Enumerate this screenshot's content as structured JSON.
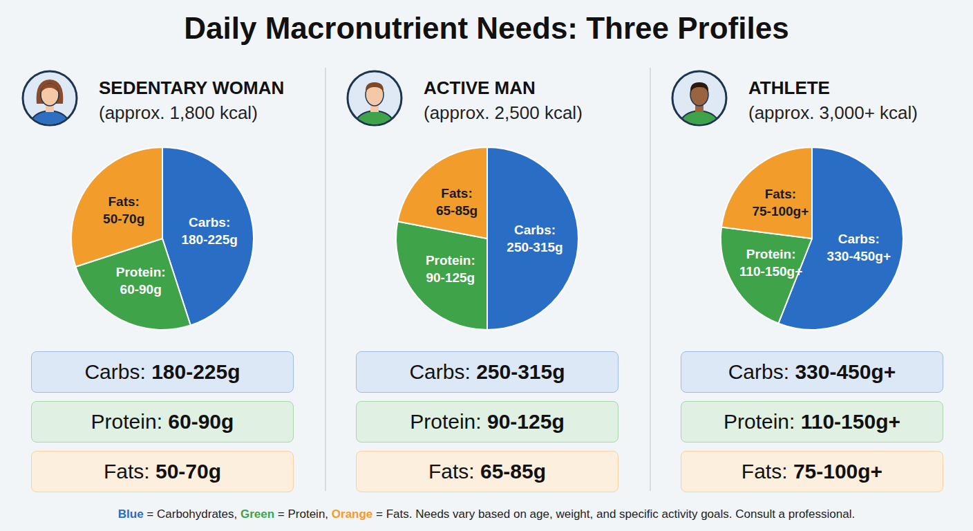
{
  "title": "Daily Macronutrient Needs: Three Profiles",
  "footnote": [
    {
      "text": "Blue",
      "color": "#2a6dc4"
    },
    {
      "text": " = Carbohydrates, "
    },
    {
      "text": "Green",
      "color": "#3fa34a"
    },
    {
      "text": " = Protein, "
    },
    {
      "text": "Orange",
      "color": "#f29c2b"
    },
    {
      "text": " = Fats. Needs vary based on age, weight, and specific activity goals. Consult a professional."
    }
  ],
  "chart_data": [
    {
      "type": "pie",
      "title": "SEDENTARY WOMAN",
      "subtitle": "(approx. 1,800 kcal)",
      "categories": [
        "Carbs:",
        "Protein:",
        "Fats:"
      ],
      "values": [
        45,
        25,
        30
      ],
      "amounts": [
        "180-225g",
        "60-90g",
        "50-70g"
      ],
      "colors": [
        "#2a6dc4",
        "#3fa34a",
        "#f29c2b"
      ]
    },
    {
      "type": "pie",
      "title": "ACTIVE MAN",
      "subtitle": "(approx. 2,500 kcal)",
      "categories": [
        "Carbs:",
        "Protein:",
        "Fats:"
      ],
      "values": [
        50,
        28,
        22
      ],
      "amounts": [
        "250-315g",
        "90-125g",
        "65-85g"
      ],
      "colors": [
        "#2a6dc4",
        "#3fa34a",
        "#f29c2b"
      ]
    },
    {
      "type": "pie",
      "title": "ATHLETE",
      "subtitle": "(approx. 3,000+ kcal)",
      "categories": [
        "Carbs:",
        "Protein:",
        "Fats:"
      ],
      "values": [
        56,
        21,
        23
      ],
      "amounts": [
        "330-450g+",
        "110-150g+",
        "75-100g+"
      ],
      "colors": [
        "#2a6dc4",
        "#3fa34a",
        "#f29c2b"
      ]
    }
  ]
}
